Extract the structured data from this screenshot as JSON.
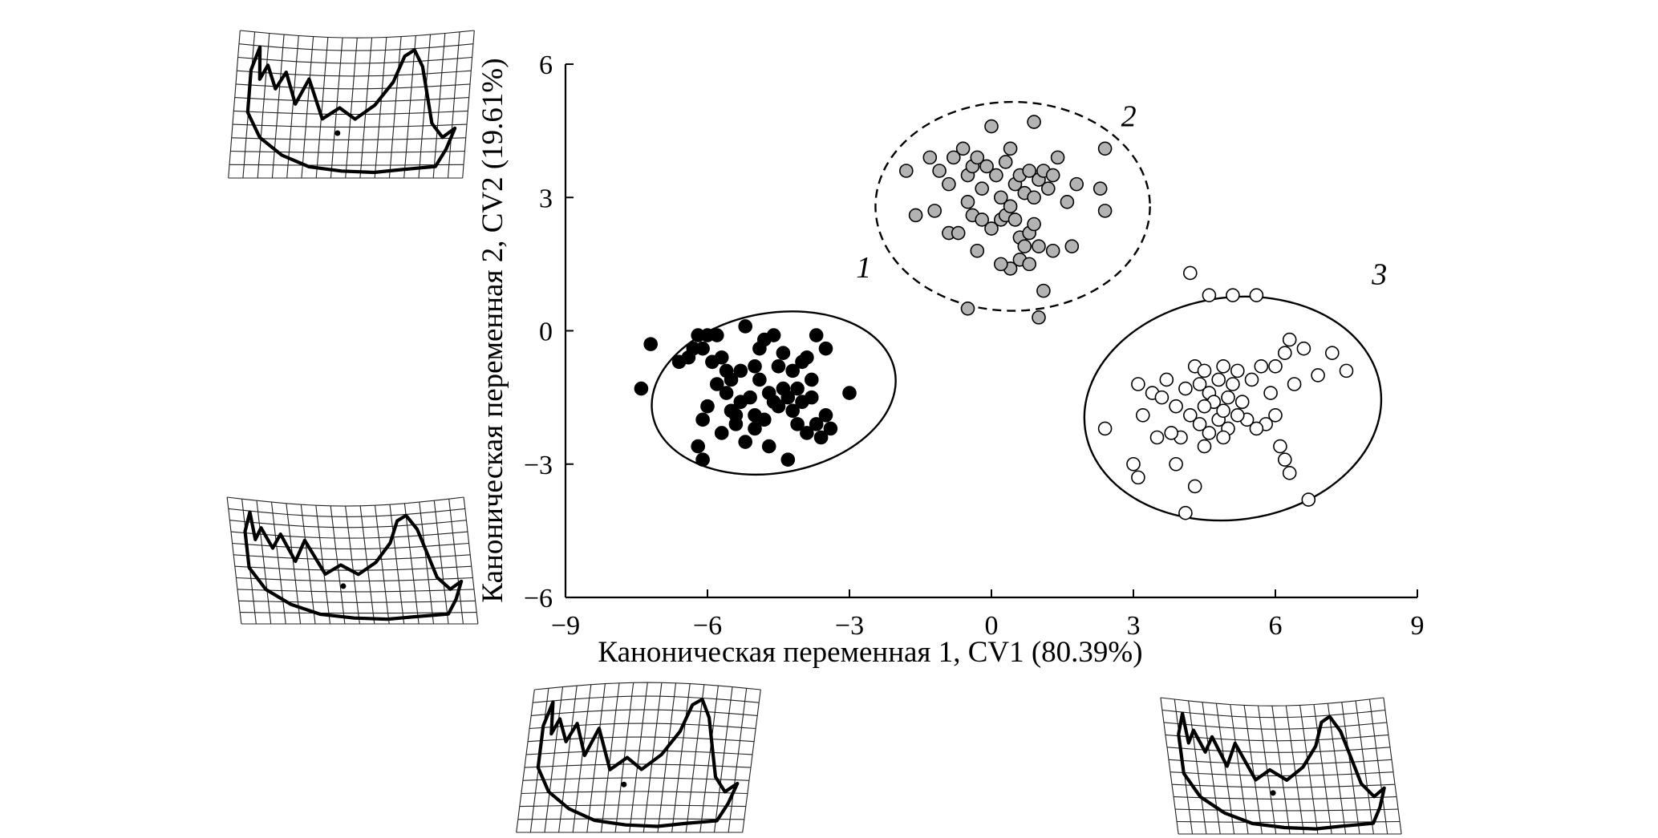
{
  "chart_data": {
    "type": "scatter",
    "xlabel": "Каноническая переменная 1, CV1 (80.39%)",
    "ylabel": "Каноническая переменная 2, CV2 (19.61%)",
    "xlim": [
      -9,
      9
    ],
    "ylim": [
      -6,
      6
    ],
    "xticks": [
      -9,
      -6,
      -3,
      0,
      3,
      6,
      9
    ],
    "yticks": [
      -6,
      -3,
      0,
      3,
      6
    ],
    "xtick_labels": [
      "−9",
      "−6",
      "−3",
      "0",
      "3",
      "6",
      "9"
    ],
    "ytick_labels": [
      "−6",
      "−3",
      "0",
      "3",
      "6"
    ],
    "grid": false,
    "legend": "none",
    "groups": [
      {
        "label": "1",
        "marker_fill": "#000000",
        "ellipse_style": "solid",
        "ellipse": {
          "cx": -4.6,
          "cy": -1.4,
          "rx": 2.6,
          "ry": 1.8,
          "angle_deg": -10
        },
        "points": [
          [
            -7.2,
            -0.3
          ],
          [
            -7.4,
            -1.3
          ],
          [
            -6.6,
            -0.7
          ],
          [
            -6.4,
            -0.6
          ],
          [
            -6.3,
            -0.4
          ],
          [
            -6.2,
            -0.1
          ],
          [
            -6.1,
            -0.4
          ],
          [
            -6.0,
            -0.1
          ],
          [
            -5.9,
            -0.7
          ],
          [
            -5.8,
            -0.1
          ],
          [
            -5.7,
            -0.6
          ],
          [
            -5.5,
            -1.1
          ],
          [
            -5.3,
            -0.9
          ],
          [
            -5.2,
            0.1
          ],
          [
            -5.0,
            -0.8
          ],
          [
            -4.9,
            -0.4
          ],
          [
            -4.8,
            -0.2
          ],
          [
            -4.6,
            -0.1
          ],
          [
            -4.4,
            -0.5
          ],
          [
            -4.2,
            -0.9
          ],
          [
            -4.0,
            -0.7
          ],
          [
            -3.9,
            -0.6
          ],
          [
            -3.7,
            -0.1
          ],
          [
            -3.5,
            -0.4
          ],
          [
            -3.8,
            -1.1
          ],
          [
            -4.1,
            -1.3
          ],
          [
            -4.3,
            -1.5
          ],
          [
            -4.5,
            -1.7
          ],
          [
            -4.7,
            -1.4
          ],
          [
            -4.9,
            -1.1
          ],
          [
            -5.1,
            -1.5
          ],
          [
            -5.3,
            -1.6
          ],
          [
            -5.4,
            -1.9
          ],
          [
            -5.6,
            -1.4
          ],
          [
            -5.8,
            -1.2
          ],
          [
            -6.0,
            -1.7
          ],
          [
            -6.1,
            -2.0
          ],
          [
            -5.7,
            -2.3
          ],
          [
            -5.4,
            -2.1
          ],
          [
            -5.2,
            -2.5
          ],
          [
            -5.0,
            -2.2
          ],
          [
            -4.8,
            -2.0
          ],
          [
            -4.6,
            -1.6
          ],
          [
            -4.4,
            -1.3
          ],
          [
            -4.2,
            -1.8
          ],
          [
            -4.0,
            -1.6
          ],
          [
            -3.8,
            -1.5
          ],
          [
            -3.7,
            -2.1
          ],
          [
            -3.5,
            -1.9
          ],
          [
            -3.6,
            -2.4
          ],
          [
            -3.9,
            -2.3
          ],
          [
            -4.1,
            -2.1
          ],
          [
            -4.3,
            -2.9
          ],
          [
            -4.7,
            -2.6
          ],
          [
            -5.0,
            -1.9
          ],
          [
            -5.5,
            -1.8
          ],
          [
            -6.2,
            -2.6
          ],
          [
            -6.1,
            -2.9
          ],
          [
            -3.0,
            -1.4
          ],
          [
            -3.4,
            -2.2
          ],
          [
            -4.5,
            -0.8
          ],
          [
            -5.6,
            -0.9
          ]
        ]
      },
      {
        "label": "2",
        "marker_fill": "#b3b3b3",
        "ellipse_style": "dashed",
        "ellipse": {
          "cx": 0.45,
          "cy": 2.8,
          "rx": 2.9,
          "ry": 2.35,
          "angle_deg": 0
        },
        "points": [
          [
            -1.8,
            3.6
          ],
          [
            -1.6,
            2.6
          ],
          [
            -1.3,
            3.9
          ],
          [
            -1.2,
            2.7
          ],
          [
            -1.1,
            3.6
          ],
          [
            -0.9,
            3.3
          ],
          [
            -0.8,
            3.9
          ],
          [
            -0.6,
            4.1
          ],
          [
            -0.5,
            3.5
          ],
          [
            -0.4,
            3.7
          ],
          [
            -0.3,
            3.9
          ],
          [
            -0.2,
            3.2
          ],
          [
            -0.1,
            3.7
          ],
          [
            0.0,
            4.6
          ],
          [
            0.1,
            3.5
          ],
          [
            0.2,
            3.0
          ],
          [
            0.3,
            3.8
          ],
          [
            0.4,
            4.1
          ],
          [
            0.5,
            3.3
          ],
          [
            0.6,
            3.5
          ],
          [
            0.7,
            3.1
          ],
          [
            0.8,
            3.6
          ],
          [
            0.9,
            3.0
          ],
          [
            1.0,
            3.4
          ],
          [
            1.1,
            3.6
          ],
          [
            1.2,
            3.2
          ],
          [
            1.3,
            3.5
          ],
          [
            1.4,
            3.9
          ],
          [
            1.6,
            2.9
          ],
          [
            1.8,
            3.3
          ],
          [
            -0.9,
            2.2
          ],
          [
            -0.7,
            2.2
          ],
          [
            -0.5,
            2.9
          ],
          [
            -0.4,
            2.6
          ],
          [
            -0.2,
            2.5
          ],
          [
            0.0,
            2.3
          ],
          [
            0.2,
            2.5
          ],
          [
            0.3,
            2.6
          ],
          [
            0.4,
            2.8
          ],
          [
            0.5,
            2.5
          ],
          [
            0.6,
            2.1
          ],
          [
            0.7,
            1.9
          ],
          [
            0.8,
            2.2
          ],
          [
            0.9,
            2.4
          ],
          [
            1.0,
            1.9
          ],
          [
            0.6,
            1.6
          ],
          [
            0.4,
            1.4
          ],
          [
            0.2,
            1.5
          ],
          [
            -0.3,
            1.8
          ],
          [
            0.8,
            1.5
          ],
          [
            1.3,
            1.8
          ],
          [
            1.7,
            1.9
          ],
          [
            1.1,
            0.9
          ],
          [
            -0.5,
            0.5
          ],
          [
            1.0,
            0.3
          ],
          [
            2.4,
            4.1
          ],
          [
            2.3,
            3.2
          ],
          [
            2.4,
            2.7
          ],
          [
            0.9,
            4.7
          ]
        ]
      },
      {
        "label": "3",
        "marker_fill": "#ffffff",
        "ellipse_style": "solid",
        "ellipse": {
          "cx": 5.1,
          "cy": -1.75,
          "rx": 3.15,
          "ry": 2.5,
          "angle_deg": -8
        },
        "points": [
          [
            4.2,
            1.3
          ],
          [
            4.6,
            0.8
          ],
          [
            5.1,
            0.8
          ],
          [
            5.6,
            0.8
          ],
          [
            7.2,
            -0.5
          ],
          [
            7.5,
            -0.9
          ],
          [
            6.3,
            -0.2
          ],
          [
            6.6,
            -0.4
          ],
          [
            6.9,
            -1.0
          ],
          [
            6.4,
            -1.2
          ],
          [
            6.2,
            -0.5
          ],
          [
            6.0,
            -0.8
          ],
          [
            3.1,
            -1.2
          ],
          [
            3.4,
            -1.4
          ],
          [
            3.6,
            -1.5
          ],
          [
            3.7,
            -1.1
          ],
          [
            3.9,
            -1.7
          ],
          [
            4.1,
            -1.3
          ],
          [
            4.3,
            -0.8
          ],
          [
            4.4,
            -1.2
          ],
          [
            4.5,
            -0.9
          ],
          [
            4.6,
            -1.4
          ],
          [
            4.7,
            -1.6
          ],
          [
            4.8,
            -1.1
          ],
          [
            4.9,
            -0.8
          ],
          [
            5.0,
            -1.5
          ],
          [
            5.1,
            -1.2
          ],
          [
            5.2,
            -0.9
          ],
          [
            5.3,
            -1.6
          ],
          [
            5.5,
            -1.1
          ],
          [
            5.7,
            -0.8
          ],
          [
            5.9,
            -1.4
          ],
          [
            6.0,
            -1.9
          ],
          [
            5.8,
            -2.1
          ],
          [
            5.6,
            -2.2
          ],
          [
            5.4,
            -2.0
          ],
          [
            5.2,
            -1.9
          ],
          [
            5.0,
            -2.2
          ],
          [
            4.8,
            -2.0
          ],
          [
            4.6,
            -2.3
          ],
          [
            4.4,
            -2.1
          ],
          [
            4.2,
            -1.9
          ],
          [
            4.0,
            -2.4
          ],
          [
            3.8,
            -2.3
          ],
          [
            3.5,
            -2.4
          ],
          [
            3.2,
            -1.9
          ],
          [
            2.4,
            -2.2
          ],
          [
            3.0,
            -3.0
          ],
          [
            3.1,
            -3.3
          ],
          [
            3.9,
            -3.0
          ],
          [
            4.5,
            -2.6
          ],
          [
            4.9,
            -2.4
          ],
          [
            6.1,
            -2.6
          ],
          [
            6.2,
            -2.9
          ],
          [
            6.3,
            -3.2
          ],
          [
            6.7,
            -3.8
          ],
          [
            4.3,
            -3.5
          ],
          [
            4.1,
            -4.1
          ],
          [
            4.5,
            -1.7
          ],
          [
            4.9,
            -1.8
          ]
        ]
      }
    ]
  },
  "shape_grids": [
    {
      "id": "top-left"
    },
    {
      "id": "middle-left"
    },
    {
      "id": "bottom-left"
    },
    {
      "id": "bottom-right"
    }
  ]
}
